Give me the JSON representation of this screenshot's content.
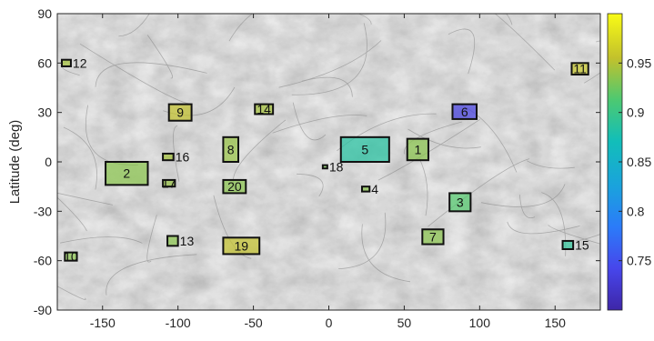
{
  "chart_data": {
    "type": "heatmap",
    "title": "",
    "xlabel": "",
    "ylabel": "Latitude (deg)",
    "xlim": [
      -180,
      180
    ],
    "ylim": [
      -90,
      90
    ],
    "xticks": [
      -150,
      -100,
      -50,
      0,
      50,
      100,
      150
    ],
    "yticks": [
      -90,
      -60,
      -30,
      0,
      30,
      60,
      90
    ],
    "grid": false,
    "background": "grayscale planetary surface map",
    "colorbar": {
      "min": 0.7,
      "max": 1.0,
      "ticks": [
        "0.75",
        "0.8",
        "0.85",
        "0.9",
        "0.95"
      ],
      "tick_values": [
        0.75,
        0.8,
        0.85,
        0.9,
        0.95
      ],
      "colormap": "parula"
    },
    "regions": [
      {
        "label": "1",
        "lon": [
          52,
          66
        ],
        "lat": [
          1,
          14
        ],
        "value": 0.935
      },
      {
        "label": "2",
        "lon": [
          -148,
          -120
        ],
        "lat": [
          -14,
          0
        ],
        "value": 0.935
      },
      {
        "label": "3",
        "lon": [
          80,
          94
        ],
        "lat": [
          -30,
          -19
        ],
        "value": 0.915
      },
      {
        "label": "4",
        "lon": [
          22,
          27
        ],
        "lat": [
          -18,
          -15
        ],
        "value": 0.935
      },
      {
        "label": "5",
        "lon": [
          8,
          40
        ],
        "lat": [
          0,
          15
        ],
        "value": 0.885
      },
      {
        "label": "6",
        "lon": [
          82,
          98
        ],
        "lat": [
          26,
          35
        ],
        "value": 0.735
      },
      {
        "label": "7",
        "lon": [
          62,
          76
        ],
        "lat": [
          -50,
          -41
        ],
        "value": 0.935
      },
      {
        "label": "8",
        "lon": [
          -70,
          -60
        ],
        "lat": [
          0,
          15
        ],
        "value": 0.94
      },
      {
        "label": "9",
        "lon": [
          -106,
          -91
        ],
        "lat": [
          25,
          35
        ],
        "value": 0.955
      },
      {
        "label": "10",
        "lon": [
          -175,
          -167
        ],
        "lat": [
          -60,
          -55
        ],
        "value": 0.935
      },
      {
        "label": "11",
        "lon": [
          161,
          172
        ],
        "lat": [
          53,
          60
        ],
        "value": 0.96
      },
      {
        "label": "12",
        "lon": [
          -177,
          -171
        ],
        "lat": [
          58,
          62
        ],
        "value": 0.945
      },
      {
        "label": "13",
        "lon": [
          -107,
          -100
        ],
        "lat": [
          -51,
          -45
        ],
        "value": 0.935
      },
      {
        "label": "14",
        "lon": [
          -49,
          -37
        ],
        "lat": [
          29,
          35
        ],
        "value": 0.945
      },
      {
        "label": "15",
        "lon": [
          155,
          162
        ],
        "lat": [
          -53,
          -48
        ],
        "value": 0.89
      },
      {
        "label": "16",
        "lon": [
          -110,
          -103
        ],
        "lat": [
          1,
          5
        ],
        "value": 0.945
      },
      {
        "label": "17",
        "lon": [
          -110,
          -102
        ],
        "lat": [
          -15,
          -11
        ],
        "value": 0.94
      },
      {
        "label": "18",
        "lon": [
          -4,
          -1
        ],
        "lat": [
          -4,
          -2
        ],
        "value": 0.93
      },
      {
        "label": "19",
        "lon": [
          -70,
          -46
        ],
        "lat": [
          -56,
          -46
        ],
        "value": 0.955
      },
      {
        "label": "20",
        "lon": [
          -70,
          -55
        ],
        "lat": [
          -19,
          -11
        ],
        "value": 0.935
      }
    ]
  }
}
